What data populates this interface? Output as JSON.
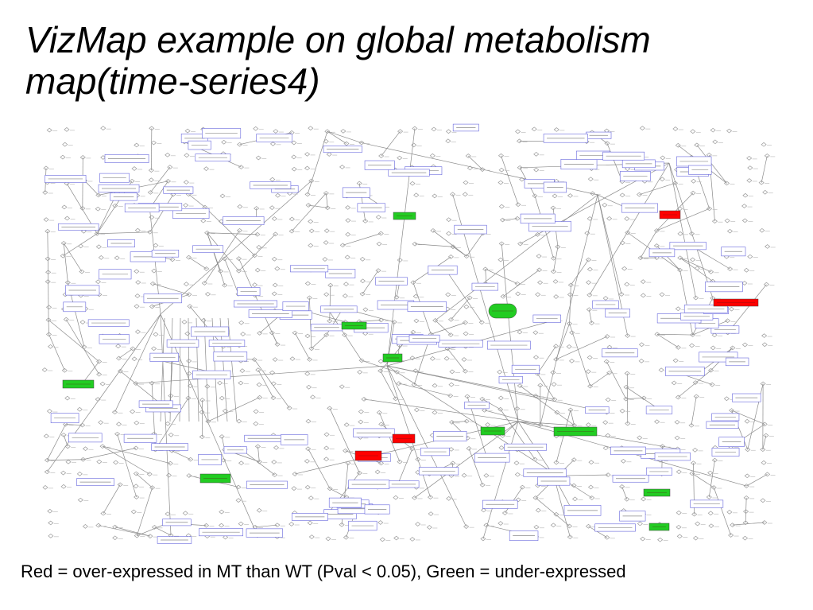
{
  "slide": {
    "title_line1": "VizMap example on global metabolism",
    "title_line2": "map(time-series4)",
    "caption": "Red = over-expressed in MT than WT (Pval < 0.05), Green = under-expressed"
  },
  "colors": {
    "over_expressed": "#ff0000",
    "under_expressed": "#22cc22",
    "node_outline": "#6666dd",
    "edge": "#8a8a8a",
    "compound": "#9a9a9a"
  },
  "map": {
    "type": "metabolic-network",
    "highlighted_nodes": [
      {
        "state": "over-expressed"
      },
      {
        "state": "over-expressed"
      },
      {
        "state": "over-expressed"
      },
      {
        "state": "over-expressed"
      },
      {
        "state": "under-expressed"
      },
      {
        "state": "under-expressed"
      },
      {
        "state": "under-expressed"
      },
      {
        "state": "under-expressed"
      },
      {
        "state": "under-expressed"
      },
      {
        "state": "under-expressed"
      },
      {
        "state": "under-expressed"
      },
      {
        "state": "under-expressed"
      },
      {
        "state": "under-expressed"
      },
      {
        "state": "under-expressed"
      }
    ]
  }
}
